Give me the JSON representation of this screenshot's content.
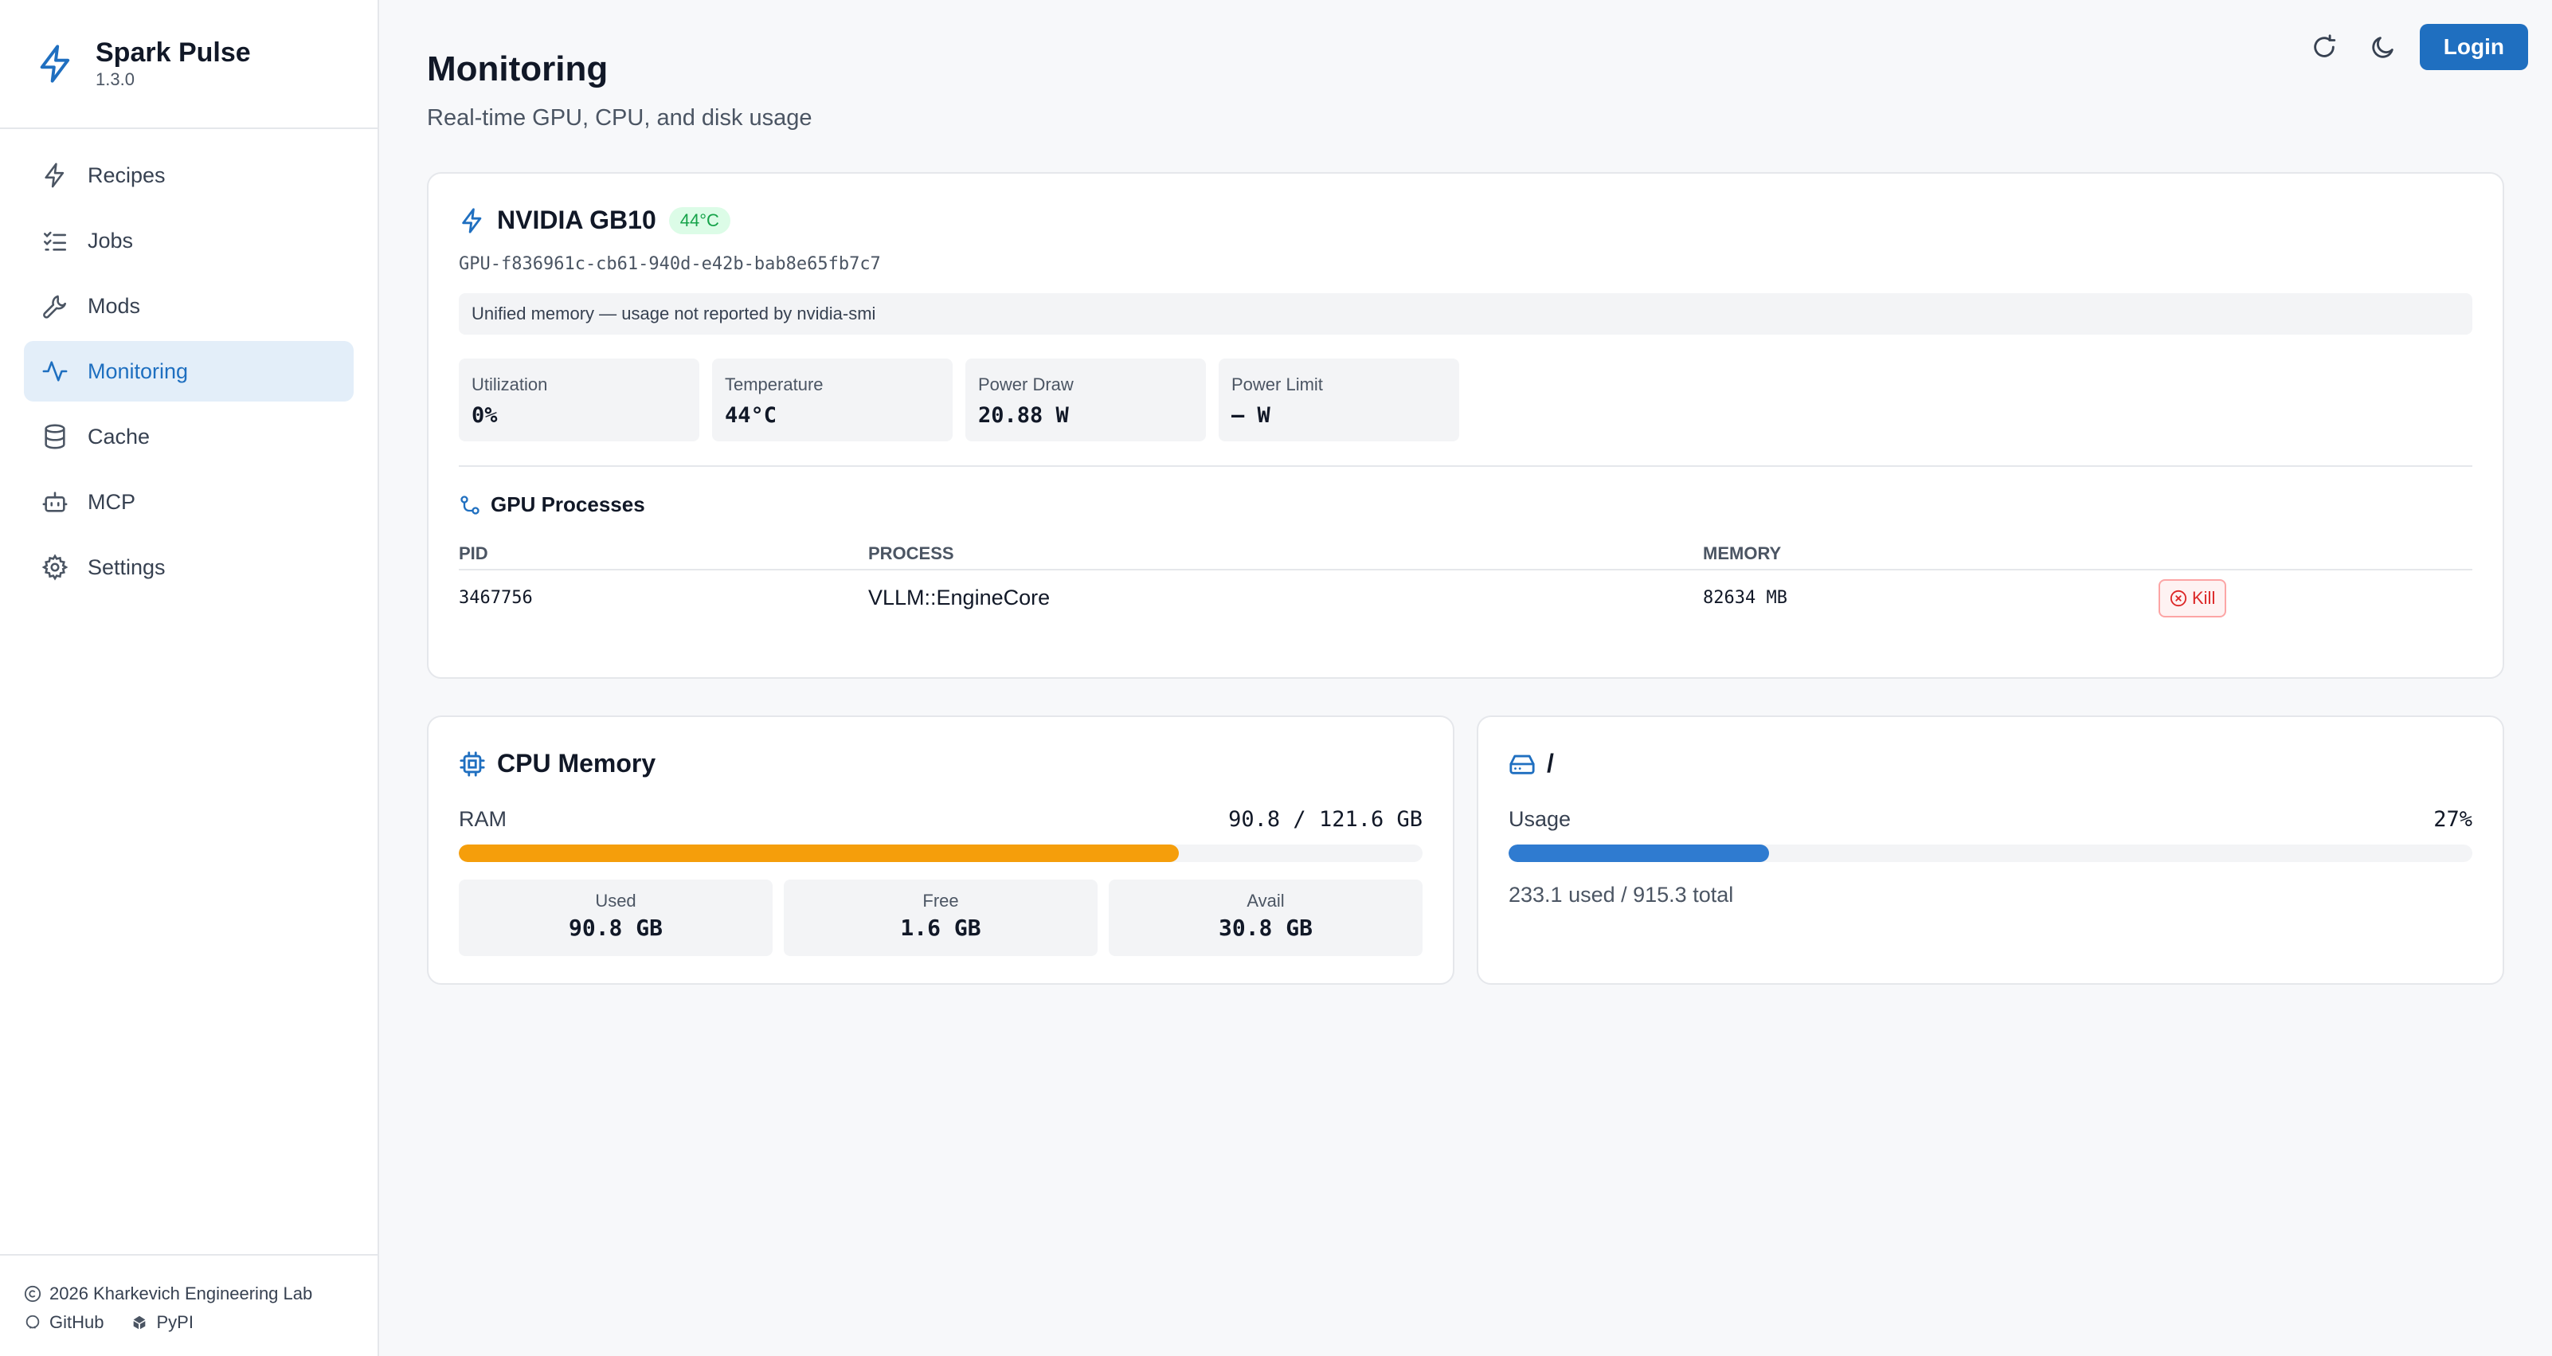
{
  "app": {
    "name": "Spark Pulse",
    "version": "1.3.0"
  },
  "sidebar": {
    "items": [
      {
        "label": "Recipes",
        "icon": "bolt-icon",
        "active": false
      },
      {
        "label": "Jobs",
        "icon": "checklist-icon",
        "active": false
      },
      {
        "label": "Mods",
        "icon": "wrench-icon",
        "active": false
      },
      {
        "label": "Monitoring",
        "icon": "activity-icon",
        "active": true
      },
      {
        "label": "Cache",
        "icon": "database-icon",
        "active": false
      },
      {
        "label": "MCP",
        "icon": "bot-icon",
        "active": false
      },
      {
        "label": "Settings",
        "icon": "gear-icon",
        "active": false
      }
    ],
    "footer": {
      "copyright": "2026 Kharkevich Engineering Lab",
      "github": "GitHub",
      "pypi": "PyPI"
    }
  },
  "header": {
    "title": "Monitoring",
    "subtitle": "Real-time GPU, CPU, and disk usage",
    "login_label": "Login"
  },
  "gpu": {
    "name": "NVIDIA GB10",
    "temp_badge": "44°C",
    "uuid": "GPU-f836961c-cb61-940d-e42b-bab8e65fb7c7",
    "note": "Unified memory — usage not reported by nvidia-smi",
    "stats": [
      {
        "label": "Utilization",
        "value": "0%"
      },
      {
        "label": "Temperature",
        "value": "44°C"
      },
      {
        "label": "Power Draw",
        "value": "20.88 W"
      },
      {
        "label": "Power Limit",
        "value": "— W"
      }
    ],
    "processes": {
      "title": "GPU Processes",
      "columns": [
        "PID",
        "PROCESS",
        "MEMORY"
      ],
      "rows": [
        {
          "pid": "3467756",
          "process": "VLLM::EngineCore",
          "memory": "82634 MB",
          "action": "Kill"
        }
      ]
    }
  },
  "cpu_memory": {
    "title": "CPU Memory",
    "label": "RAM",
    "value": "90.8 / 121.6 GB",
    "used_fraction": 0.747,
    "bar_color": "#f59e0b",
    "stats": [
      {
        "label": "Used",
        "value": "90.8 GB"
      },
      {
        "label": "Free",
        "value": "1.6 GB"
      },
      {
        "label": "Avail",
        "value": "30.8 GB"
      }
    ]
  },
  "disk": {
    "title": "/",
    "label": "Usage",
    "percent": "27%",
    "used_fraction": 0.27,
    "bar_color": "#2f7bd0",
    "summary": "233.1 used / 915.3 total"
  },
  "colors": {
    "accent": "#1f6fc0",
    "active_nav_bg": "#e3eef9",
    "success_badge": "#16a34a",
    "danger": "#dc2626"
  }
}
